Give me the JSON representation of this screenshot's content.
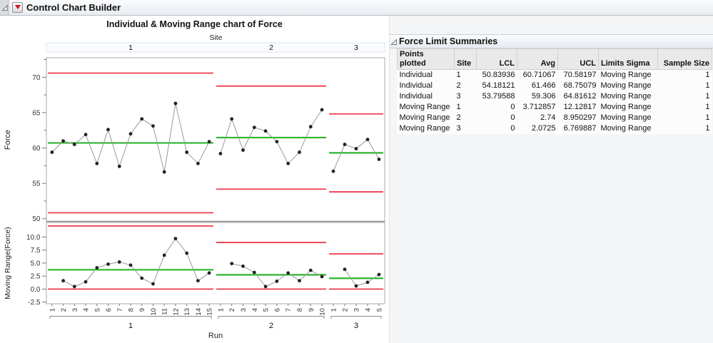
{
  "window": {
    "title": "Control Chart Builder"
  },
  "summary_panel": {
    "title": "Force Limit Summaries",
    "table": {
      "columns": [
        {
          "label": "Points plotted",
          "align": "left"
        },
        {
          "label": "Site",
          "align": "left"
        },
        {
          "label": "LCL",
          "align": "right"
        },
        {
          "label": "Avg",
          "align": "right"
        },
        {
          "label": "UCL",
          "align": "right"
        },
        {
          "label": "Limits Sigma",
          "align": "left"
        },
        {
          "label": "Sample Size",
          "align": "right"
        }
      ],
      "rows": [
        [
          "Individual",
          "1",
          "50.83936",
          "60.71067",
          "70.58197",
          "Moving Range",
          "1"
        ],
        [
          "Individual",
          "2",
          "54.18121",
          "61.466",
          "68.75079",
          "Moving Range",
          "1"
        ],
        [
          "Individual",
          "3",
          "53.79588",
          "59.306",
          "64.81612",
          "Moving Range",
          "1"
        ],
        [
          "Moving Range",
          "1",
          "0",
          "3.712857",
          "12.12817",
          "Moving Range",
          "1"
        ],
        [
          "Moving Range",
          "2",
          "0",
          "2.74",
          "8.950297",
          "Moving Range",
          "1"
        ],
        [
          "Moving Range",
          "3",
          "0",
          "2.0725",
          "6.769887",
          "Moving Range",
          "1"
        ]
      ]
    }
  },
  "chart_data": {
    "type": "line",
    "title": "Individual & Moving Range chart of Force",
    "facet_label": "Site",
    "xlabel": "Run",
    "force_axis": {
      "label": "Force",
      "ticks": [
        {
          "v": 70,
          "label": "70"
        },
        {
          "v": 65,
          "label": "65"
        },
        {
          "v": 60,
          "label": "60"
        },
        {
          "v": 55,
          "label": "55"
        },
        {
          "v": 50,
          "label": "50"
        }
      ],
      "minor_ticks": [
        52.5,
        57.5,
        62.5,
        67.5,
        72.5
      ],
      "range": [
        49.5,
        72.8
      ]
    },
    "mr_axis": {
      "label": "Moving Range(Force)",
      "ticks": [
        {
          "v": 10,
          "label": "10.0"
        },
        {
          "v": 7.5,
          "label": "7.5"
        },
        {
          "v": 5,
          "label": "5.0"
        },
        {
          "v": 2.5,
          "label": "2.5"
        },
        {
          "v": 0,
          "label": "0.0"
        },
        {
          "v": -2.5,
          "label": "-2.5"
        }
      ],
      "range": [
        -2.8,
        12.8
      ]
    },
    "sites": [
      {
        "label": "1",
        "runs": [
          1,
          2,
          3,
          4,
          5,
          6,
          7,
          8,
          9,
          10,
          11,
          12,
          13,
          14,
          15
        ],
        "individuals": [
          59.4,
          61.0,
          60.5,
          61.9,
          57.8,
          62.6,
          57.4,
          62.0,
          64.1,
          63.1,
          56.6,
          66.3,
          59.4,
          57.8,
          60.9
        ],
        "moving_ranges": [
          null,
          1.6,
          0.5,
          1.4,
          4.1,
          4.8,
          5.2,
          4.6,
          2.1,
          1.0,
          6.5,
          9.7,
          6.9,
          1.6,
          3.1
        ],
        "ind_limits": {
          "lcl": 50.83936,
          "avg": 60.71067,
          "ucl": 70.58197
        },
        "mr_limits": {
          "lcl": 0,
          "avg": 3.712857,
          "ucl": 12.12817
        }
      },
      {
        "label": "2",
        "runs": [
          1,
          2,
          3,
          4,
          5,
          6,
          7,
          8,
          9,
          10
        ],
        "individuals": [
          59.2,
          64.1,
          59.7,
          62.9,
          62.4,
          60.9,
          57.8,
          59.4,
          63.0,
          65.4
        ],
        "moving_ranges": [
          null,
          4.9,
          4.4,
          3.2,
          0.5,
          1.5,
          3.1,
          1.6,
          3.6,
          2.4
        ],
        "ind_limits": {
          "lcl": 54.18121,
          "avg": 61.466,
          "ucl": 68.75079
        },
        "mr_limits": {
          "lcl": 0,
          "avg": 2.74,
          "ucl": 8.950297
        }
      },
      {
        "label": "3",
        "runs": [
          1,
          2,
          3,
          4,
          5
        ],
        "individuals": [
          56.7,
          60.5,
          59.9,
          61.2,
          58.4
        ],
        "moving_ranges": [
          null,
          3.8,
          0.6,
          1.3,
          2.8
        ],
        "ind_limits": {
          "lcl": 53.79588,
          "avg": 59.306,
          "ucl": 64.81612
        },
        "mr_limits": {
          "lcl": 0,
          "avg": 2.0725,
          "ucl": 6.769887
        }
      }
    ],
    "colors": {
      "limit_line": "#ee3a50",
      "center_line": "#2cb52c",
      "point": "#222222",
      "connector": "#999999",
      "frame": "#a8a8a8",
      "panel_divider": "#8a8a8a"
    }
  }
}
